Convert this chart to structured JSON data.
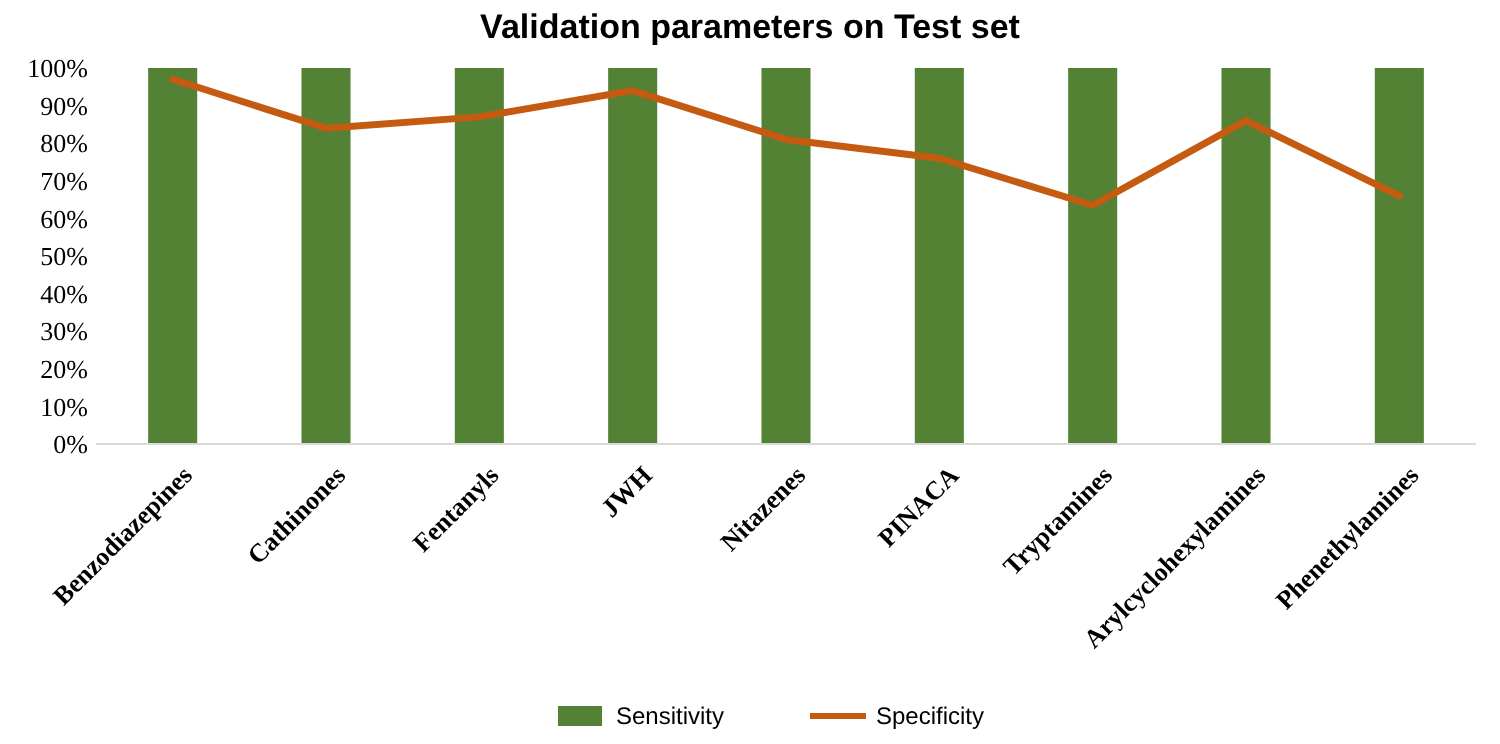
{
  "chart_data": {
    "type": "bar",
    "title": "Validation parameters on Test set",
    "categories": [
      "Benzodiazepines",
      "Cathinones",
      "Fentanyls",
      "JWH",
      "Nitazenes",
      "PINACA",
      "Tryptamines",
      "Arylcyclohexylamines",
      "Phenethylamines"
    ],
    "series": [
      {
        "name": "Sensitivity",
        "color": "#548235",
        "values": [
          100,
          100,
          100,
          100,
          100,
          100,
          100,
          100,
          100
        ]
      },
      {
        "name": "Specificity",
        "type": "line",
        "color": "#c55a11",
        "values": [
          97,
          84,
          87,
          94,
          81,
          76,
          63.5,
          86,
          66
        ]
      }
    ],
    "ylim": [
      0,
      100
    ],
    "yticks": [
      {
        "value": 0,
        "label": "0%"
      },
      {
        "value": 10,
        "label": "10%"
      },
      {
        "value": 20,
        "label": "20%"
      },
      {
        "value": 30,
        "label": "30%"
      },
      {
        "value": 40,
        "label": "40%"
      },
      {
        "value": 50,
        "label": "50%"
      },
      {
        "value": 60,
        "label": "60%"
      },
      {
        "value": 70,
        "label": "70%"
      },
      {
        "value": 80,
        "label": "80%"
      },
      {
        "value": 90,
        "label": "90%"
      },
      {
        "value": 100,
        "label": "100%"
      }
    ],
    "legend": "bottom",
    "marker": "none",
    "line_style": "solid"
  }
}
